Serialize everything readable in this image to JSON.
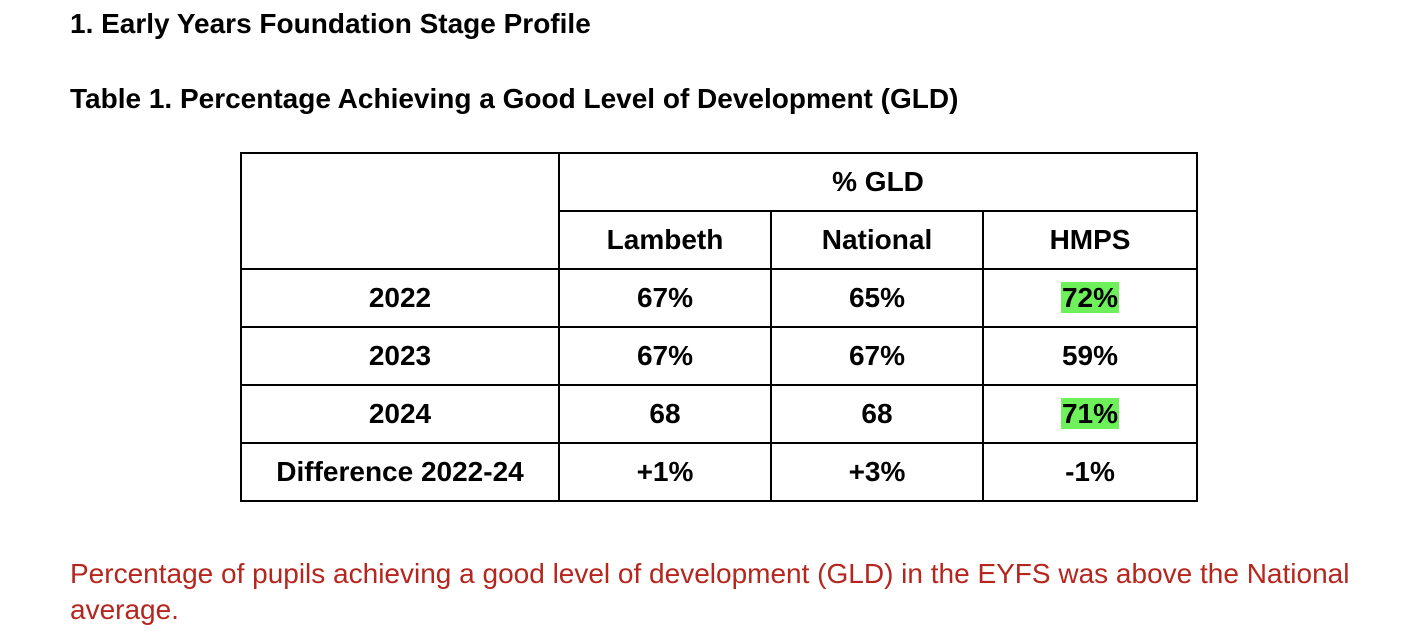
{
  "heading": "1. Early Years Foundation Stage Profile",
  "table_caption": "Table 1. Percentage Achieving a Good Level of Development (GLD)",
  "table": {
    "group_header": "% GLD",
    "columns": [
      "Lambeth",
      "National",
      "HMPS"
    ],
    "rows": [
      {
        "label": "2022",
        "values": [
          "67%",
          "65%",
          "72%"
        ]
      },
      {
        "label": "2023",
        "values": [
          "67%",
          "67%",
          "59%"
        ]
      },
      {
        "label": "2024",
        "values": [
          "68",
          "68",
          "71%"
        ]
      },
      {
        "label": "Difference 2022-24",
        "values": [
          "+1%",
          "+3%",
          "-1%"
        ]
      }
    ],
    "highlight_color": "#6ef05a"
  },
  "note": "Percentage of pupils achieving a good level of development (GLD) in the EYFS was above the National average.",
  "colors": {
    "note_text": "#b5261e"
  }
}
